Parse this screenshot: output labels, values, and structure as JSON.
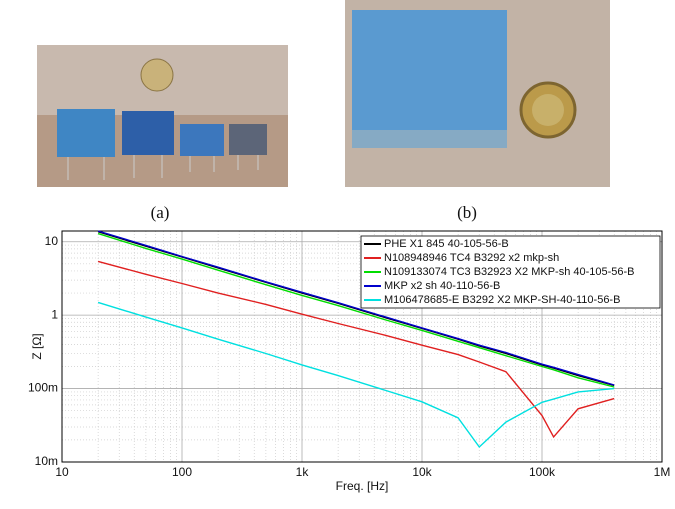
{
  "figure": {
    "caption_a": "(a)",
    "caption_b": "(b)"
  },
  "chart_data": {
    "type": "line",
    "ylabel": "Z [Ω]",
    "xlabel": "Freq. [Hz]",
    "log_x": true,
    "log_y": true,
    "grid": true,
    "legend": "upper right",
    "xlim": [
      10,
      1000000
    ],
    "xticks": [
      10,
      100,
      {
        "value": 1000,
        "label": "1k"
      },
      {
        "value": 10000,
        "label": "10k"
      },
      {
        "value": 100000,
        "label": "100k"
      },
      {
        "value": 1000000,
        "label": "1M"
      }
    ],
    "ylim": [
      0.01,
      14
    ],
    "yticks": [
      {
        "value": 0.01,
        "label": "10m"
      },
      {
        "value": 0.1,
        "label": "100m"
      },
      1,
      10
    ],
    "x": [
      20,
      50,
      100,
      200,
      500,
      1000,
      2000,
      5000,
      10000,
      20000,
      30000,
      50000,
      100000,
      125000,
      200000,
      400000
    ],
    "series": [
      {
        "name": "PHE X1 845 40-105-56-B",
        "color": "#000000",
        "values": [
          13.7,
          8.7,
          6.2,
          4.4,
          2.8,
          2.0,
          1.45,
          0.92,
          0.66,
          0.47,
          0.38,
          0.3,
          0.21,
          0.19,
          0.15,
          0.11
        ]
      },
      {
        "name": "N108948946 TC4 B3292 x2 mkp-sh",
        "color": "#e02020",
        "values": [
          5.4,
          3.6,
          2.7,
          2.0,
          1.4,
          1.03,
          0.77,
          0.53,
          0.39,
          0.29,
          0.23,
          0.17,
          0.043,
          0.022,
          0.053,
          0.073
        ]
      },
      {
        "name": "N109133074 TC3 B32923 X2 MKP-sh 40-105-56-B",
        "color": "#00dd00",
        "values": [
          12.9,
          8.1,
          5.8,
          4.1,
          2.6,
          1.86,
          1.35,
          0.86,
          0.62,
          0.44,
          0.36,
          0.28,
          0.2,
          0.18,
          0.14,
          0.105
        ]
      },
      {
        "name": "MKP x2 sh 40-110-56-B",
        "color": "#0000cc",
        "values": [
          14,
          8.9,
          6.3,
          4.5,
          2.85,
          2.05,
          1.48,
          0.94,
          0.67,
          0.48,
          0.39,
          0.31,
          0.215,
          0.195,
          0.155,
          0.112
        ]
      },
      {
        "name": "M106478685-E B3292 X2 MKP-SH-40-110-56-B",
        "color": "#00e0e0",
        "values": [
          1.49,
          0.94,
          0.67,
          0.47,
          0.3,
          0.21,
          0.15,
          0.094,
          0.066,
          0.04,
          0.016,
          0.035,
          0.065,
          0.072,
          0.09,
          0.1
        ]
      }
    ]
  }
}
